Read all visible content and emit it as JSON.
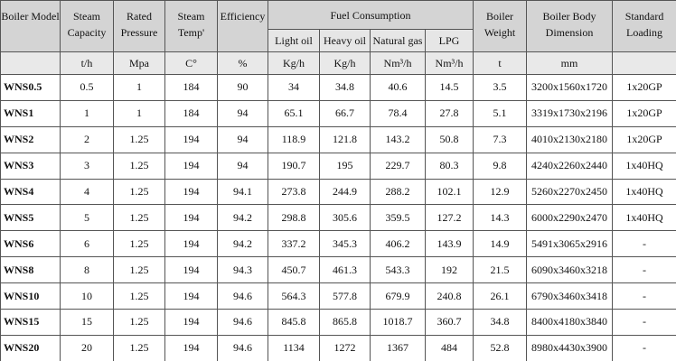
{
  "header": {
    "columns": [
      "Boiler Model",
      "Steam Capacity",
      "Rated Pressure",
      "Steam Temp'",
      "Efficiency",
      "Fuel Consumption",
      "Boiler Weight",
      "Boiler Body Dimension",
      "Standard Loading"
    ],
    "fuel_columns": [
      "Light oil",
      "Heavy oil",
      "Natural gas",
      "LPG"
    ],
    "units": [
      "t/h",
      "Mpa",
      "C°",
      "%",
      "Kg/h",
      "Kg/h",
      "Nm³/h",
      "Nm³/h",
      "t",
      "mm"
    ]
  },
  "table": {
    "rows": [
      [
        "WNS0.5",
        "0.5",
        "1",
        "184",
        "90",
        "34",
        "34.8",
        "40.6",
        "14.5",
        "3.5",
        "3200x1560x1720",
        "1x20GP"
      ],
      [
        "WNS1",
        "1",
        "1",
        "184",
        "94",
        "65.1",
        "66.7",
        "78.4",
        "27.8",
        "5.1",
        "3319x1730x2196",
        "1x20GP"
      ],
      [
        "WNS2",
        "2",
        "1.25",
        "194",
        "94",
        "118.9",
        "121.8",
        "143.2",
        "50.8",
        "7.3",
        "4010x2130x2180",
        "1x20GP"
      ],
      [
        "WNS3",
        "3",
        "1.25",
        "194",
        "94",
        "190.7",
        "195",
        "229.7",
        "80.3",
        "9.8",
        "4240x2260x2440",
        "1x40HQ"
      ],
      [
        "WNS4",
        "4",
        "1.25",
        "194",
        "94.1",
        "273.8",
        "244.9",
        "288.2",
        "102.1",
        "12.9",
        "5260x2270x2450",
        "1x40HQ"
      ],
      [
        "WNS5",
        "5",
        "1.25",
        "194",
        "94.2",
        "298.8",
        "305.6",
        "359.5",
        "127.2",
        "14.3",
        "6000x2290x2470",
        "1x40HQ"
      ],
      [
        "WNS6",
        "6",
        "1.25",
        "194",
        "94.2",
        "337.2",
        "345.3",
        "406.2",
        "143.9",
        "14.9",
        "5491x3065x2916",
        "-"
      ],
      [
        "WNS8",
        "8",
        "1.25",
        "194",
        "94.3",
        "450.7",
        "461.3",
        "543.3",
        "192",
        "21.5",
        "6090x3460x3218",
        "-"
      ],
      [
        "WNS10",
        "10",
        "1.25",
        "194",
        "94.6",
        "564.3",
        "577.8",
        "679.9",
        "240.8",
        "26.1",
        "6790x3460x3418",
        "-"
      ],
      [
        "WNS15",
        "15",
        "1.25",
        "194",
        "94.6",
        "845.8",
        "865.8",
        "1018.7",
        "360.7",
        "34.8",
        "8400x4180x3840",
        "-"
      ],
      [
        "WNS20",
        "20",
        "1.25",
        "194",
        "94.6",
        "1134",
        "1272",
        "1367",
        "484",
        "52.8",
        "8980x4430x3900",
        "-"
      ]
    ]
  }
}
